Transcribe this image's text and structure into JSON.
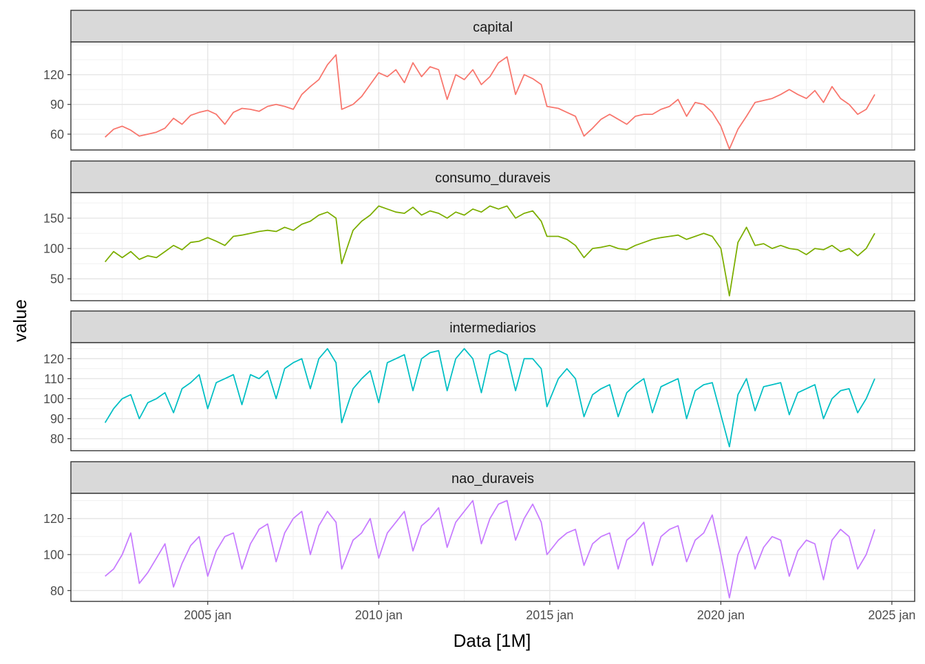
{
  "chart_data": {
    "type": "line",
    "layout": "faceted-vertical",
    "xlabel": "Data [1M]",
    "ylabel": "value",
    "x_ticks": [
      "2005 jan",
      "2010 jan",
      "2015 jan",
      "2020 jan",
      "2025 jan"
    ],
    "xlim": [
      "2001-01",
      "2025-09"
    ],
    "grid": true,
    "legend": "none",
    "panels": [
      {
        "name": "capital",
        "color": "#F8766D",
        "ylim": [
          44,
          153
        ],
        "y_ticks": [
          60,
          90,
          120
        ],
        "x": [
          "2002-01",
          "2002-04",
          "2002-07",
          "2002-10",
          "2003-01",
          "2003-04",
          "2003-07",
          "2003-10",
          "2004-01",
          "2004-04",
          "2004-07",
          "2004-10",
          "2005-01",
          "2005-04",
          "2005-07",
          "2005-10",
          "2006-01",
          "2006-04",
          "2006-07",
          "2006-10",
          "2007-01",
          "2007-04",
          "2007-07",
          "2007-10",
          "2008-01",
          "2008-04",
          "2008-07",
          "2008-10",
          "2008-12",
          "2009-04",
          "2009-07",
          "2009-10",
          "2010-01",
          "2010-04",
          "2010-07",
          "2010-10",
          "2011-01",
          "2011-04",
          "2011-07",
          "2011-10",
          "2012-01",
          "2012-04",
          "2012-07",
          "2012-10",
          "2013-01",
          "2013-04",
          "2013-07",
          "2013-10",
          "2014-01",
          "2014-04",
          "2014-07",
          "2014-10",
          "2014-12",
          "2015-04",
          "2015-07",
          "2015-10",
          "2016-01",
          "2016-04",
          "2016-07",
          "2016-10",
          "2017-01",
          "2017-04",
          "2017-07",
          "2017-10",
          "2018-01",
          "2018-04",
          "2018-07",
          "2018-10",
          "2019-01",
          "2019-04",
          "2019-07",
          "2019-10",
          "2020-01",
          "2020-04",
          "2020-07",
          "2020-10",
          "2021-01",
          "2021-04",
          "2021-07",
          "2021-10",
          "2022-01",
          "2022-04",
          "2022-07",
          "2022-10",
          "2023-01",
          "2023-04",
          "2023-07",
          "2023-10",
          "2024-01",
          "2024-04",
          "2024-07"
        ],
        "values": [
          57,
          65,
          68,
          64,
          58,
          60,
          62,
          66,
          76,
          70,
          79,
          82,
          84,
          80,
          70,
          82,
          86,
          85,
          83,
          88,
          90,
          88,
          85,
          100,
          108,
          115,
          130,
          140,
          85,
          90,
          98,
          110,
          122,
          118,
          125,
          112,
          132,
          118,
          128,
          125,
          95,
          120,
          115,
          125,
          110,
          118,
          132,
          138,
          100,
          120,
          116,
          110,
          88,
          86,
          82,
          78,
          58,
          66,
          75,
          80,
          75,
          70,
          78,
          80,
          80,
          85,
          88,
          95,
          78,
          92,
          90,
          82,
          68,
          45,
          65,
          78,
          92,
          94,
          96,
          100,
          105,
          100,
          96,
          104,
          92,
          108,
          96,
          90,
          80,
          85,
          100
        ]
      },
      {
        "name": "consumo_duraveis",
        "color": "#7CAE00",
        "ylim": [
          14,
          192
        ],
        "y_ticks": [
          50,
          100,
          150
        ],
        "x": [
          "2002-01",
          "2002-04",
          "2002-07",
          "2002-10",
          "2003-01",
          "2003-04",
          "2003-07",
          "2003-10",
          "2004-01",
          "2004-04",
          "2004-07",
          "2004-10",
          "2005-01",
          "2005-04",
          "2005-07",
          "2005-10",
          "2006-01",
          "2006-04",
          "2006-07",
          "2006-10",
          "2007-01",
          "2007-04",
          "2007-07",
          "2007-10",
          "2008-01",
          "2008-04",
          "2008-07",
          "2008-10",
          "2008-12",
          "2009-04",
          "2009-07",
          "2009-10",
          "2010-01",
          "2010-04",
          "2010-07",
          "2010-10",
          "2011-01",
          "2011-04",
          "2011-07",
          "2011-10",
          "2012-01",
          "2012-04",
          "2012-07",
          "2012-10",
          "2013-01",
          "2013-04",
          "2013-07",
          "2013-10",
          "2014-01",
          "2014-04",
          "2014-07",
          "2014-10",
          "2014-12",
          "2015-04",
          "2015-07",
          "2015-10",
          "2016-01",
          "2016-04",
          "2016-07",
          "2016-10",
          "2017-01",
          "2017-04",
          "2017-07",
          "2017-10",
          "2018-01",
          "2018-04",
          "2018-07",
          "2018-10",
          "2019-01",
          "2019-04",
          "2019-07",
          "2019-10",
          "2020-01",
          "2020-04",
          "2020-07",
          "2020-10",
          "2021-01",
          "2021-04",
          "2021-07",
          "2021-10",
          "2022-01",
          "2022-04",
          "2022-07",
          "2022-10",
          "2023-01",
          "2023-04",
          "2023-07",
          "2023-10",
          "2024-01",
          "2024-04",
          "2024-07"
        ],
        "values": [
          78,
          95,
          85,
          95,
          82,
          88,
          85,
          95,
          105,
          98,
          110,
          112,
          118,
          112,
          105,
          120,
          122,
          125,
          128,
          130,
          128,
          135,
          130,
          140,
          145,
          155,
          160,
          150,
          75,
          130,
          145,
          155,
          170,
          165,
          160,
          158,
          168,
          155,
          162,
          158,
          150,
          160,
          155,
          165,
          160,
          170,
          165,
          170,
          150,
          158,
          162,
          145,
          120,
          120,
          115,
          105,
          85,
          100,
          102,
          105,
          100,
          98,
          105,
          110,
          115,
          118,
          120,
          122,
          115,
          120,
          125,
          120,
          100,
          22,
          110,
          135,
          105,
          108,
          100,
          105,
          100,
          98,
          90,
          100,
          98,
          105,
          95,
          100,
          88,
          100,
          125
        ]
      },
      {
        "name": "intermediarios",
        "color": "#00BFC4",
        "ylim": [
          74,
          128
        ],
        "y_ticks": [
          80,
          90,
          100,
          110,
          120
        ],
        "x": [
          "2002-01",
          "2002-04",
          "2002-07",
          "2002-10",
          "2003-01",
          "2003-04",
          "2003-07",
          "2003-10",
          "2004-01",
          "2004-04",
          "2004-07",
          "2004-10",
          "2005-01",
          "2005-04",
          "2005-07",
          "2005-10",
          "2006-01",
          "2006-04",
          "2006-07",
          "2006-10",
          "2007-01",
          "2007-04",
          "2007-07",
          "2007-10",
          "2008-01",
          "2008-04",
          "2008-07",
          "2008-10",
          "2008-12",
          "2009-04",
          "2009-07",
          "2009-10",
          "2010-01",
          "2010-04",
          "2010-07",
          "2010-10",
          "2011-01",
          "2011-04",
          "2011-07",
          "2011-10",
          "2012-01",
          "2012-04",
          "2012-07",
          "2012-10",
          "2013-01",
          "2013-04",
          "2013-07",
          "2013-10",
          "2014-01",
          "2014-04",
          "2014-07",
          "2014-10",
          "2014-12",
          "2015-04",
          "2015-07",
          "2015-10",
          "2016-01",
          "2016-04",
          "2016-07",
          "2016-10",
          "2017-01",
          "2017-04",
          "2017-07",
          "2017-10",
          "2018-01",
          "2018-04",
          "2018-07",
          "2018-10",
          "2019-01",
          "2019-04",
          "2019-07",
          "2019-10",
          "2020-01",
          "2020-04",
          "2020-07",
          "2020-10",
          "2021-01",
          "2021-04",
          "2021-07",
          "2021-10",
          "2022-01",
          "2022-04",
          "2022-07",
          "2022-10",
          "2023-01",
          "2023-04",
          "2023-07",
          "2023-10",
          "2024-01",
          "2024-04",
          "2024-07"
        ],
        "values": [
          88,
          95,
          100,
          102,
          90,
          98,
          100,
          103,
          93,
          105,
          108,
          112,
          95,
          108,
          110,
          112,
          97,
          112,
          110,
          114,
          100,
          115,
          118,
          120,
          105,
          120,
          125,
          118,
          88,
          105,
          110,
          114,
          98,
          118,
          120,
          122,
          104,
          120,
          123,
          124,
          104,
          120,
          125,
          120,
          103,
          122,
          124,
          122,
          104,
          120,
          120,
          115,
          96,
          110,
          115,
          110,
          91,
          102,
          105,
          107,
          91,
          103,
          107,
          110,
          93,
          106,
          108,
          110,
          90,
          104,
          107,
          108,
          92,
          76,
          102,
          110,
          94,
          106,
          107,
          108,
          92,
          103,
          105,
          107,
          90,
          100,
          104,
          105,
          93,
          100,
          110
        ]
      },
      {
        "name": "nao_duraveis",
        "color": "#C77CFF",
        "ylim": [
          74,
          134
        ],
        "y_ticks": [
          80,
          100,
          120
        ],
        "x": [
          "2002-01",
          "2002-04",
          "2002-07",
          "2002-10",
          "2003-01",
          "2003-04",
          "2003-07",
          "2003-10",
          "2004-01",
          "2004-04",
          "2004-07",
          "2004-10",
          "2005-01",
          "2005-04",
          "2005-07",
          "2005-10",
          "2006-01",
          "2006-04",
          "2006-07",
          "2006-10",
          "2007-01",
          "2007-04",
          "2007-07",
          "2007-10",
          "2008-01",
          "2008-04",
          "2008-07",
          "2008-10",
          "2008-12",
          "2009-04",
          "2009-07",
          "2009-10",
          "2010-01",
          "2010-04",
          "2010-07",
          "2010-10",
          "2011-01",
          "2011-04",
          "2011-07",
          "2011-10",
          "2012-01",
          "2012-04",
          "2012-07",
          "2012-10",
          "2013-01",
          "2013-04",
          "2013-07",
          "2013-10",
          "2014-01",
          "2014-04",
          "2014-07",
          "2014-10",
          "2014-12",
          "2015-04",
          "2015-07",
          "2015-10",
          "2016-01",
          "2016-04",
          "2016-07",
          "2016-10",
          "2017-01",
          "2017-04",
          "2017-07",
          "2017-10",
          "2018-01",
          "2018-04",
          "2018-07",
          "2018-10",
          "2019-01",
          "2019-04",
          "2019-07",
          "2019-10",
          "2020-01",
          "2020-04",
          "2020-07",
          "2020-10",
          "2021-01",
          "2021-04",
          "2021-07",
          "2021-10",
          "2022-01",
          "2022-04",
          "2022-07",
          "2022-10",
          "2023-01",
          "2023-04",
          "2023-07",
          "2023-10",
          "2024-01",
          "2024-04",
          "2024-07"
        ],
        "values": [
          88,
          92,
          100,
          112,
          84,
          90,
          98,
          106,
          82,
          95,
          105,
          110,
          88,
          102,
          110,
          112,
          92,
          106,
          114,
          117,
          96,
          112,
          120,
          124,
          100,
          116,
          124,
          118,
          92,
          108,
          112,
          120,
          98,
          112,
          118,
          124,
          102,
          116,
          120,
          126,
          104,
          118,
          124,
          130,
          106,
          120,
          128,
          130,
          108,
          120,
          128,
          118,
          100,
          108,
          112,
          114,
          94,
          106,
          110,
          112,
          92,
          108,
          112,
          118,
          94,
          110,
          114,
          116,
          96,
          108,
          112,
          122,
          100,
          76,
          100,
          110,
          92,
          104,
          110,
          108,
          88,
          102,
          108,
          106,
          86,
          108,
          114,
          110,
          92,
          100,
          114
        ]
      }
    ]
  }
}
